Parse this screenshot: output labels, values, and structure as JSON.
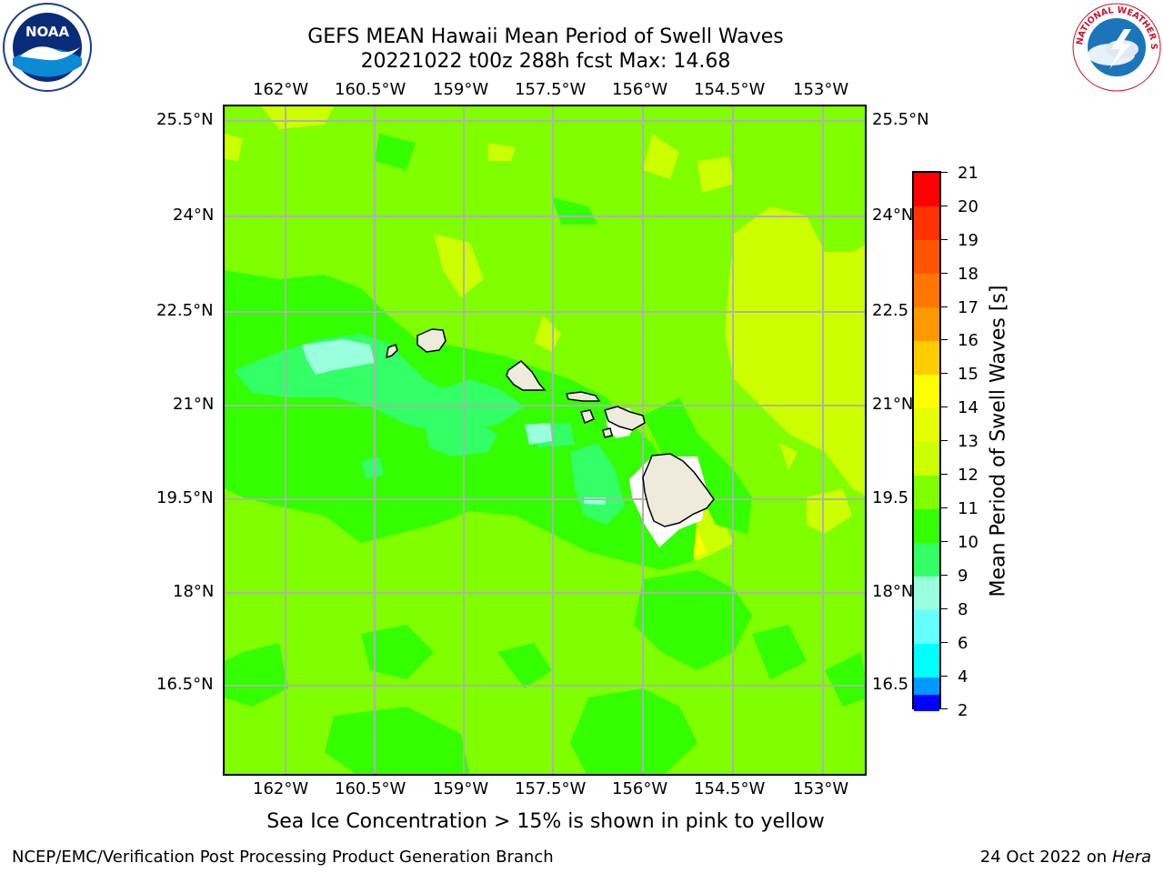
{
  "title": {
    "line1": "GEFS MEAN Hawaii Mean Period of Swell Waves",
    "line2": "20221022 t00z 288h fcst   Max: 14.68"
  },
  "map": {
    "lon_labels": [
      "162°W",
      "160.5°W",
      "159°W",
      "157.5°W",
      "156°W",
      "154.5°W",
      "153°W"
    ],
    "lat_labels": [
      "25.5°N",
      "24°N",
      "22.5°N",
      "21°N",
      "19.5°N",
      "18°N",
      "16.5°N"
    ],
    "lat_labels_right": [
      "25.5°N",
      "24°N",
      "22.5",
      "21°N",
      "19.5",
      "18°N",
      "16.5"
    ],
    "lon_range": [
      -163,
      -152.2
    ],
    "lat_range": [
      15,
      25.7
    ],
    "grid": true,
    "land_color": "#eeeadc"
  },
  "colorbar": {
    "label": "Mean Period of Swell Waves [s]",
    "ticks": [
      "21",
      "20",
      "19",
      "18",
      "17",
      "16",
      "15",
      "14",
      "13",
      "12",
      "11",
      "10",
      "9",
      "8",
      "6",
      "4",
      "2"
    ],
    "colors_top_to_bottom": [
      "#ff0000",
      "#ff3300",
      "#ff5500",
      "#ff7700",
      "#ff9900",
      "#ffcc00",
      "#ffff00",
      "#e5ff00",
      "#ccff00",
      "#7fff00",
      "#33ff00",
      "#33ff66",
      "#99ffdd",
      "#66ffff",
      "#00ffff",
      "#0099ff",
      "#0000ff"
    ]
  },
  "subcaption": "Sea Ice Concentration > 15% is shown in pink to yellow",
  "footer": {
    "left": "NCEP/EMC/Verification Post Processing Product Generation Branch",
    "date": "24 Oct 2022 on ",
    "machine": "Hera"
  },
  "logos": {
    "noaa_text": "NOAA",
    "nws_text": "NATIONAL WEATHER SERVICE"
  }
}
